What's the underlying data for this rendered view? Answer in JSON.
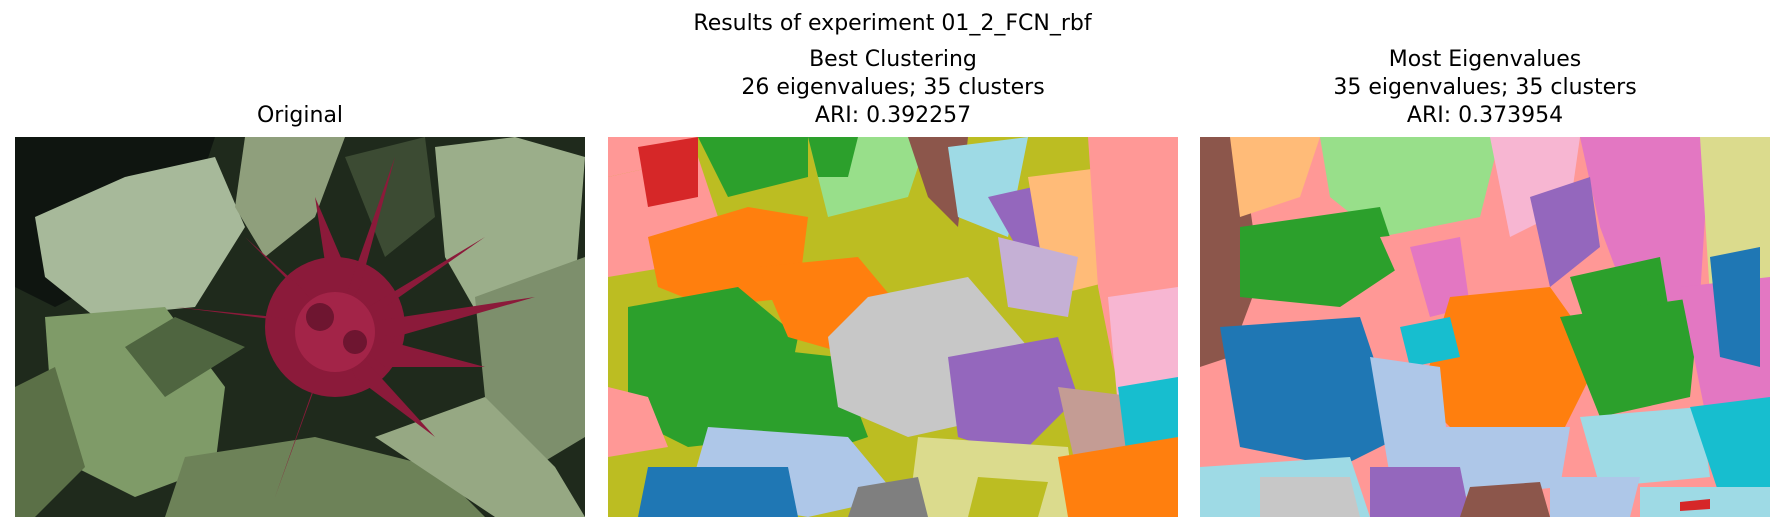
{
  "figure": {
    "suptitle": "Results of experiment 01_2_FCN_rbf"
  },
  "panels": [
    {
      "title_lines": [
        "Original"
      ],
      "kind": "photo"
    },
    {
      "title_lines": [
        "Best Clustering",
        "26 eigenvalues; 35 clusters",
        "ARI: 0.392257"
      ],
      "kind": "segmentation"
    },
    {
      "title_lines": [
        "Most Eigenvalues",
        "35 eigenvalues; 35 clusters",
        "ARI: 0.373954"
      ],
      "kind": "segmentation"
    }
  ],
  "colors": {
    "tab_blue": "#1f77b4",
    "tab_orange": "#ff7f0e",
    "tab_green": "#2ca02c",
    "tab_purple": "#9467bd",
    "tab_brown": "#8c564b",
    "tab_pink": "#e377c2",
    "tab_gray": "#7f7f7f",
    "tab_olive": "#bcbd22",
    "tab_cyan": "#17becf",
    "light_green": "#98df8a",
    "light_blue": "#aec7e8",
    "light_red": "#ff9896",
    "light_orange": "#ffbb78",
    "light_gray": "#c7c7c7",
    "light_cyan": "#9edae5",
    "light_olive": "#dbdb8d",
    "light_purple": "#c5b0d5",
    "light_pink": "#f7b6d2",
    "flower_red": "#8b1a3a",
    "leaf_green": "#8fa27a"
  }
}
